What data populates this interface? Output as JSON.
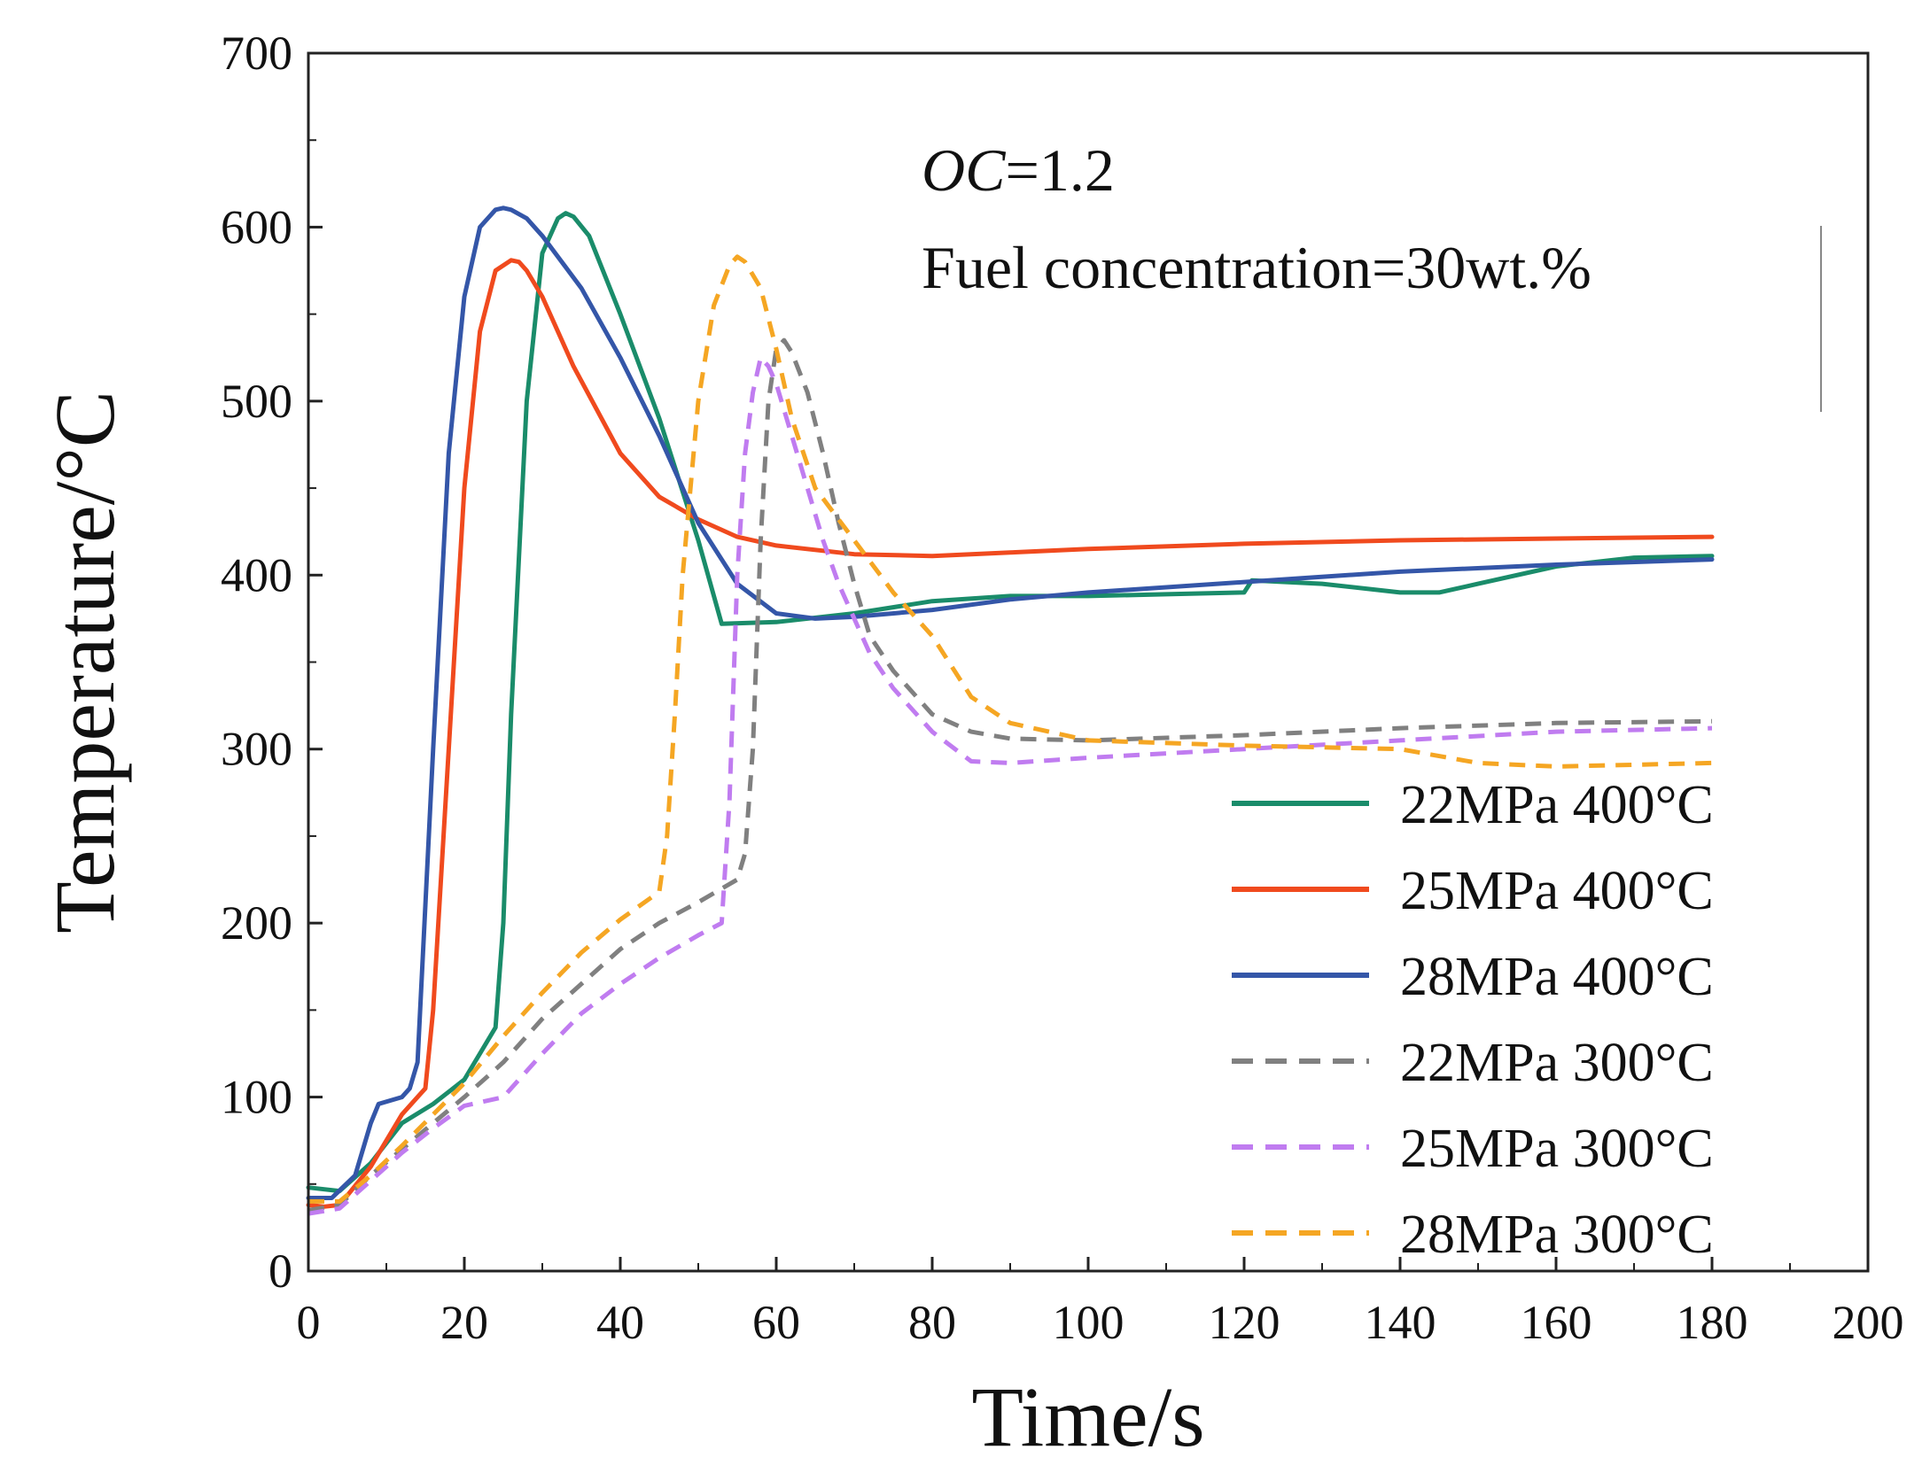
{
  "chart_data": {
    "type": "line",
    "title": "",
    "xlabel": "Time/s",
    "ylabel": "Temperature/°C",
    "xlim": [
      0,
      200
    ],
    "ylim": [
      0,
      700
    ],
    "xticks": [
      0,
      20,
      40,
      60,
      80,
      100,
      120,
      140,
      160,
      180,
      200
    ],
    "yticks": [
      0,
      100,
      200,
      300,
      400,
      500,
      600,
      700
    ],
    "grid": false,
    "legend_position": "bottom-right",
    "annotations": [
      {
        "italic": "OC",
        "text": "=1.2"
      },
      {
        "text": "Fuel concentration=30wt.%"
      }
    ],
    "series": [
      {
        "name": "22MPa 400°C",
        "color": "#1a8c6a",
        "dash": "solid",
        "x": [
          0,
          4,
          8,
          12,
          16,
          20,
          22,
          24,
          25,
          26,
          28,
          30,
          32,
          33,
          34,
          36,
          40,
          45,
          50,
          53,
          60,
          70,
          80,
          90,
          100,
          110,
          120,
          121,
          130,
          140,
          145,
          150,
          160,
          170,
          180
        ],
        "y": [
          48,
          46,
          62,
          85,
          96,
          110,
          125,
          140,
          200,
          320,
          500,
          585,
          605,
          608,
          606,
          595,
          550,
          490,
          420,
          372,
          373,
          378,
          385,
          388,
          388,
          389,
          390,
          397,
          395,
          390,
          390,
          395,
          405,
          410,
          411
        ]
      },
      {
        "name": "25MPa 400°C",
        "color": "#f04a1e",
        "dash": "solid",
        "x": [
          0,
          2,
          4,
          8,
          12,
          14,
          15,
          16,
          18,
          20,
          22,
          24,
          26,
          27,
          28,
          30,
          34,
          40,
          45,
          50,
          55,
          60,
          70,
          80,
          90,
          100,
          120,
          140,
          160,
          180
        ],
        "y": [
          38,
          37,
          38,
          60,
          90,
          100,
          105,
          150,
          300,
          450,
          540,
          575,
          581,
          580,
          575,
          560,
          520,
          470,
          445,
          432,
          422,
          417,
          412,
          411,
          413,
          415,
          418,
          420,
          421,
          422
        ]
      },
      {
        "name": "28MPa 400°C",
        "color": "#3456a8",
        "dash": "solid",
        "x": [
          0,
          3,
          6,
          8,
          9,
          12,
          13,
          14,
          16,
          18,
          20,
          22,
          24,
          25,
          26,
          28,
          30,
          35,
          40,
          45,
          50,
          55,
          60,
          65,
          70,
          80,
          90,
          100,
          120,
          140,
          160,
          180
        ],
        "y": [
          42,
          42,
          55,
          85,
          96,
          100,
          105,
          120,
          300,
          470,
          560,
          600,
          610,
          611,
          610,
          605,
          595,
          565,
          525,
          480,
          430,
          395,
          378,
          375,
          376,
          380,
          386,
          390,
          396,
          402,
          406,
          409
        ]
      },
      {
        "name": "22MPa 300°C",
        "color": "#808080",
        "dash": "dashed",
        "x": [
          0,
          4,
          8,
          12,
          16,
          20,
          25,
          30,
          35,
          40,
          45,
          50,
          55,
          56,
          57,
          58,
          59,
          60,
          61,
          62,
          64,
          66,
          68,
          70,
          72,
          75,
          80,
          85,
          90,
          100,
          120,
          140,
          160,
          180
        ],
        "y": [
          35,
          38,
          55,
          70,
          85,
          100,
          120,
          145,
          165,
          185,
          200,
          212,
          225,
          240,
          300,
          420,
          500,
          530,
          535,
          528,
          505,
          470,
          430,
          395,
          365,
          345,
          320,
          310,
          306,
          305,
          308,
          312,
          315,
          316
        ]
      },
      {
        "name": "25MPa 300°C",
        "color": "#c07cf0",
        "dash": "dashed",
        "x": [
          0,
          4,
          8,
          12,
          16,
          20,
          22,
          25,
          30,
          35,
          40,
          45,
          50,
          53,
          54,
          55,
          56,
          57,
          58,
          59,
          60,
          62,
          64,
          66,
          68,
          70,
          72,
          75,
          80,
          85,
          90,
          100,
          120,
          140,
          160,
          180
        ],
        "y": [
          33,
          36,
          52,
          68,
          82,
          95,
          97,
          100,
          125,
          148,
          165,
          180,
          193,
          200,
          270,
          400,
          470,
          505,
          525,
          520,
          510,
          480,
          450,
          420,
          395,
          375,
          355,
          335,
          310,
          293,
          292,
          295,
          300,
          305,
          310,
          312
        ]
      },
      {
        "name": "28MPa 300°C",
        "color": "#f5a623",
        "dash": "dashed",
        "x": [
          0,
          4,
          8,
          12,
          16,
          20,
          25,
          30,
          35,
          40,
          45,
          46,
          47,
          48,
          50,
          52,
          54,
          55,
          56,
          58,
          60,
          62,
          65,
          70,
          75,
          80,
          85,
          90,
          100,
          120,
          140,
          150,
          160,
          180
        ],
        "y": [
          40,
          40,
          55,
          72,
          90,
          108,
          135,
          160,
          183,
          202,
          218,
          250,
          320,
          400,
          500,
          555,
          578,
          583,
          580,
          565,
          530,
          490,
          450,
          420,
          390,
          365,
          330,
          315,
          305,
          302,
          300,
          292,
          290,
          292
        ]
      }
    ]
  }
}
